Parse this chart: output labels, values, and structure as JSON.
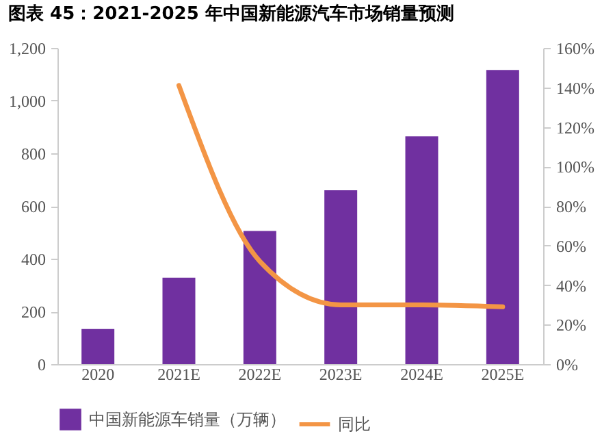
{
  "chart_data": {
    "type": "bar",
    "title": "图表 45：2021-2025 年中国新能源汽车市场销量预测",
    "categories": [
      "2020",
      "2021E",
      "2022E",
      "2023E",
      "2024E",
      "2025E"
    ],
    "series": [
      {
        "name": "中国新能源车销量（万辆）",
        "color": "#7030a0",
        "values": [
          133,
          328,
          505,
          660,
          864,
          1116
        ]
      },
      {
        "name": "同比",
        "type": "line",
        "axis": "y2",
        "color": "#f39545",
        "values": [
          null,
          141,
          52,
          30,
          30,
          29
        ]
      }
    ],
    "ylim": [
      0,
      1200
    ],
    "yticks": [
      0,
      200,
      400,
      600,
      800,
      {
        "value": 1000,
        "label": "1,000"
      },
      {
        "value": 1200,
        "label": "1,200"
      }
    ],
    "y2lim": [
      0,
      160
    ],
    "y2ticks": [
      {
        "value": 0,
        "label": "0%"
      },
      {
        "value": 20,
        "label": "20%"
      },
      {
        "value": 40,
        "label": "40%"
      },
      {
        "value": 60,
        "label": "60%"
      },
      {
        "value": 80,
        "label": "80%"
      },
      {
        "value": 100,
        "label": "100%"
      },
      {
        "value": 120,
        "label": "120%"
      },
      {
        "value": 140,
        "label": "140%"
      },
      {
        "value": 160,
        "label": "160%"
      }
    ],
    "legend": "bottom",
    "grid": false,
    "marker": "none",
    "line_style": "solid"
  }
}
